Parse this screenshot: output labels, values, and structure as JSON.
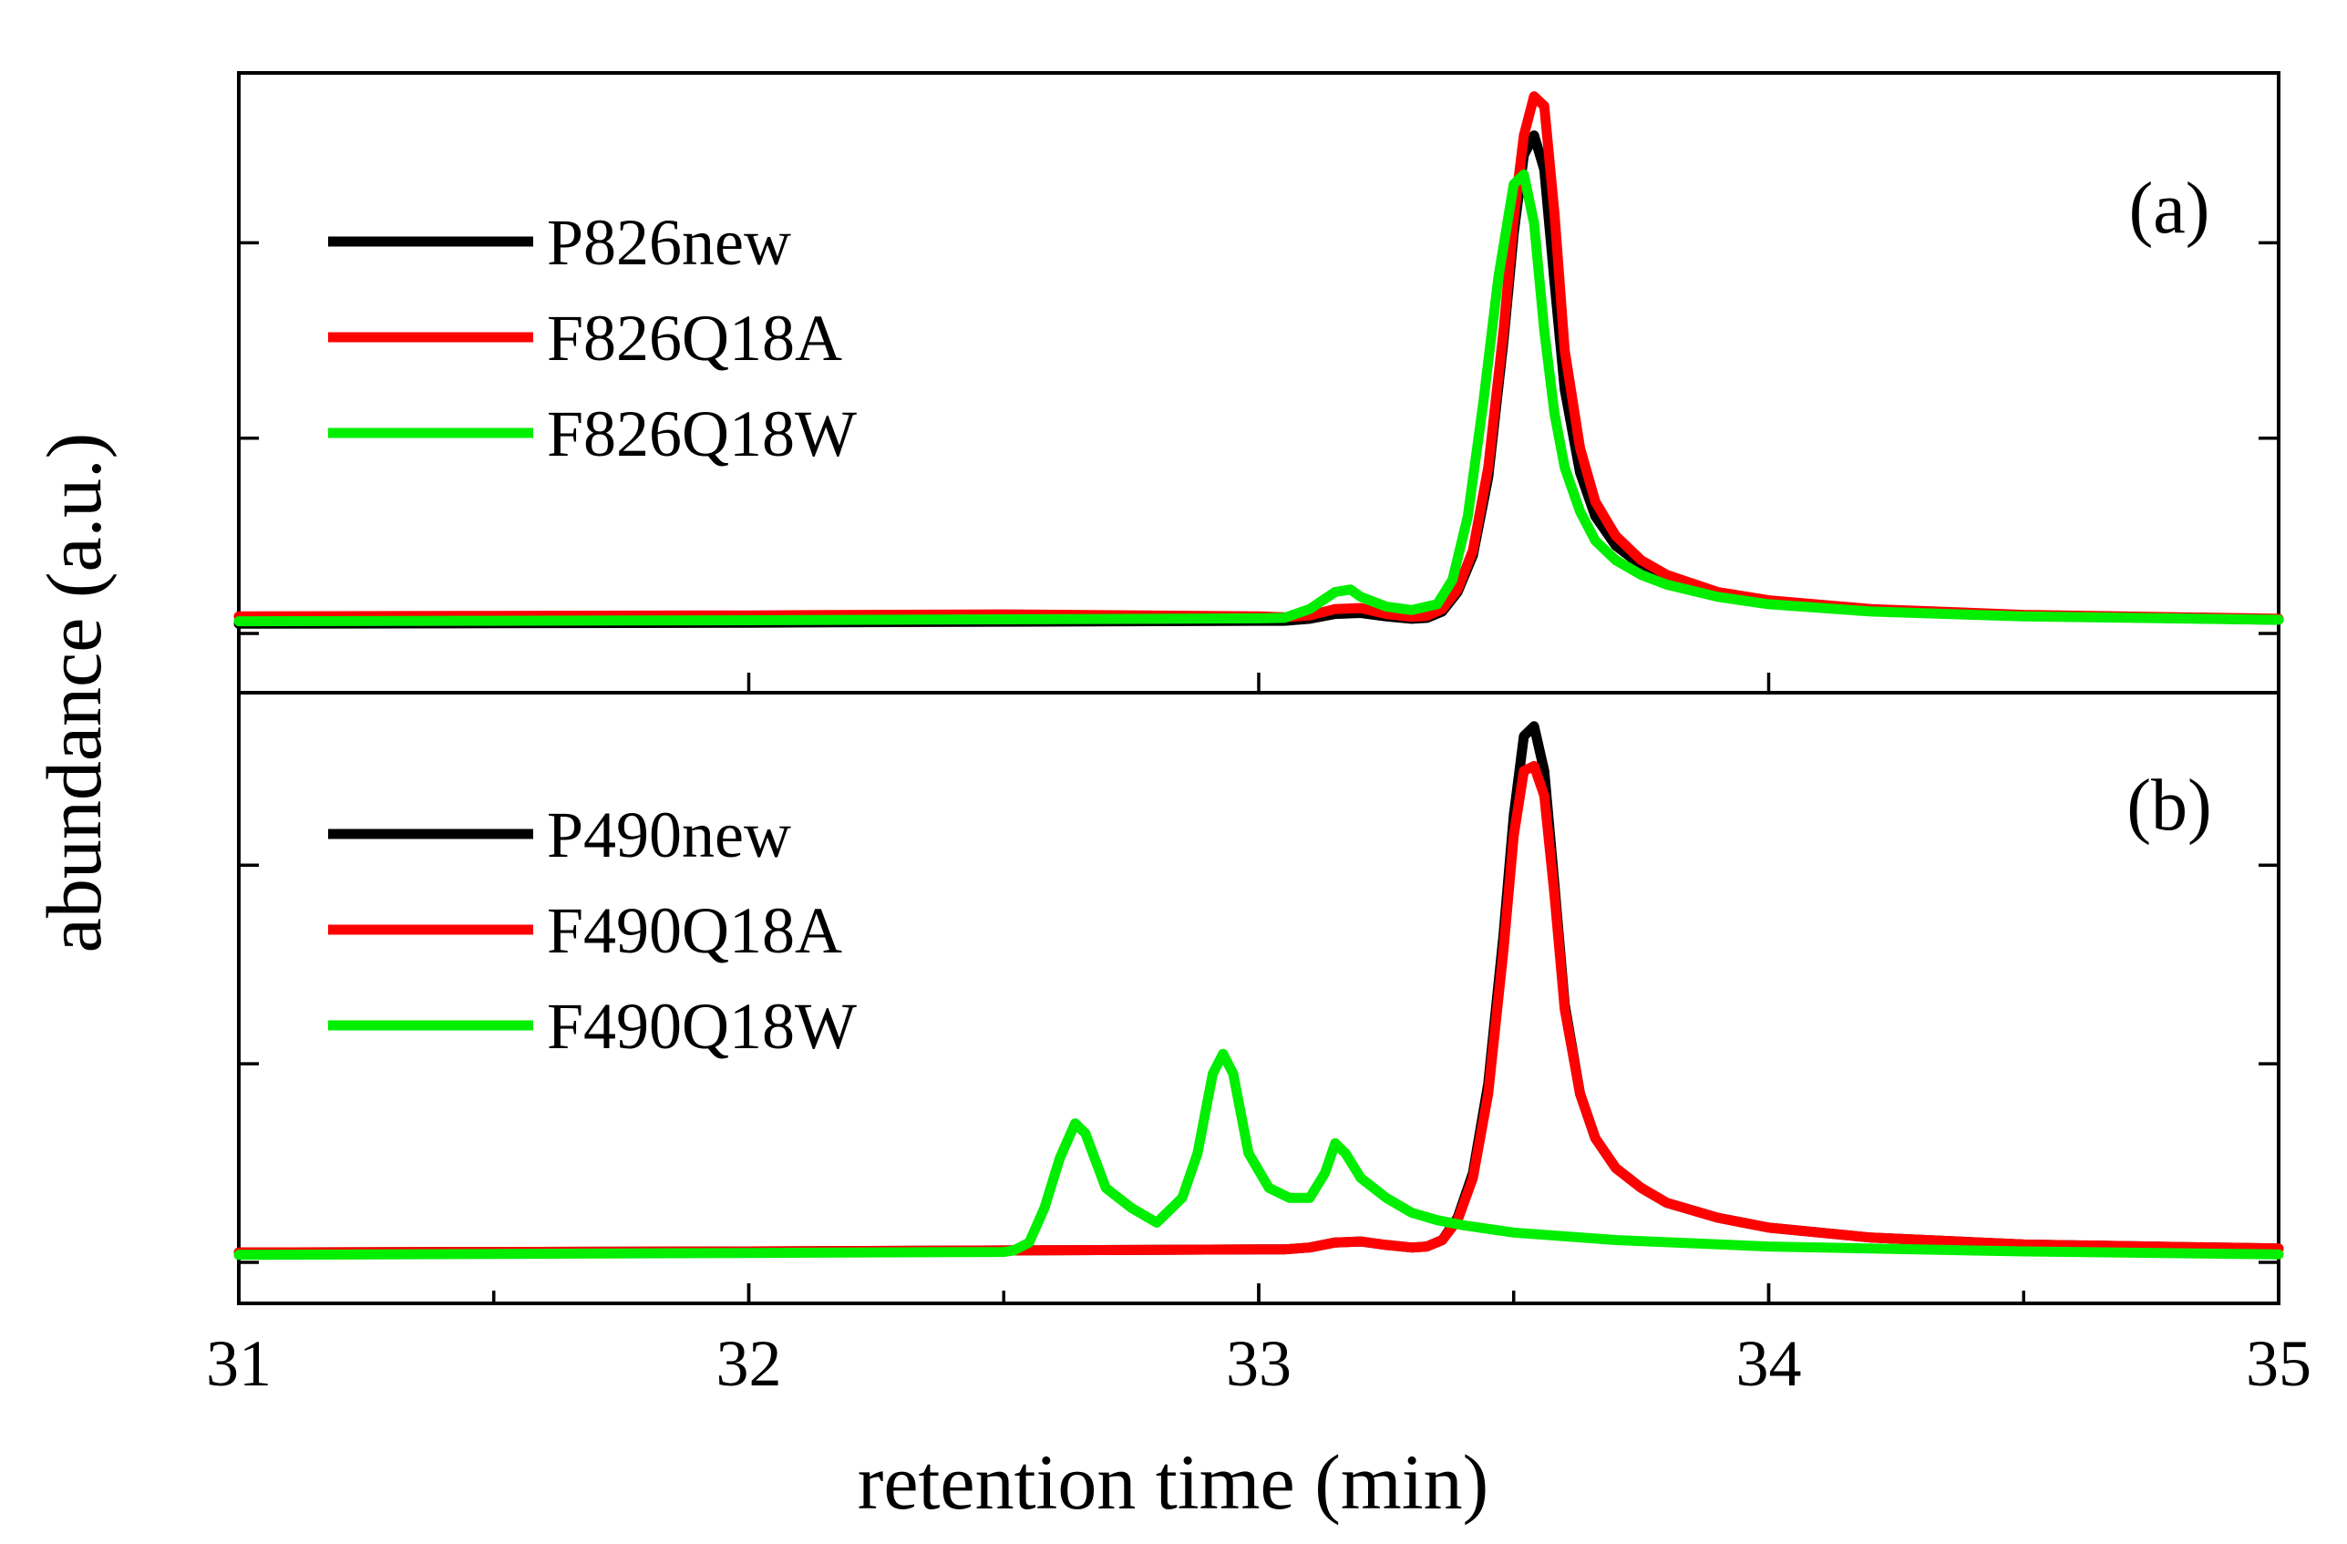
{
  "chart_data": {
    "type": "line",
    "xlabel": "retention time (min)",
    "ylabel": "abundance (a.u.)",
    "xlim": [
      31,
      35
    ],
    "x_ticks": [
      31,
      32,
      33,
      34,
      35
    ],
    "x_tick_labels": [
      "31",
      "32",
      "33",
      "34",
      "35"
    ],
    "x_minor_ticks": [
      31.5,
      32.5,
      33.5,
      34.5
    ],
    "grid": false,
    "panels": [
      {
        "label": "(a)",
        "ylim": [
          0,
          1.12
        ],
        "y_ticks": [
          0,
          0.4,
          0.8
        ],
        "legend_position": "top-left",
        "series": [
          {
            "name": "P826new",
            "color": "#000000",
            "x": [
              31.0,
              31.5,
              32.0,
              32.5,
              33.0,
              33.05,
              33.1,
              33.15,
              33.2,
              33.25,
              33.3,
              33.33,
              33.36,
              33.39,
              33.42,
              33.45,
              33.48,
              33.5,
              33.52,
              33.54,
              33.56,
              33.58,
              33.6,
              33.63,
              33.66,
              33.7,
              33.75,
              33.8,
              33.9,
              34.0,
              34.2,
              34.5,
              35.0
            ],
            "y": [
              0.02,
              0.021,
              0.022,
              0.024,
              0.026,
              0.026,
              0.03,
              0.04,
              0.042,
              0.035,
              0.03,
              0.032,
              0.045,
              0.085,
              0.16,
              0.32,
              0.6,
              0.82,
              0.98,
              1.02,
              0.95,
              0.72,
              0.5,
              0.33,
              0.24,
              0.18,
              0.14,
              0.11,
              0.08,
              0.064,
              0.048,
              0.036,
              0.028
            ]
          },
          {
            "name": "F826Q18A",
            "color": "#ff0000",
            "x": [
              31.0,
              31.5,
              32.0,
              32.5,
              33.0,
              33.05,
              33.1,
              33.15,
              33.2,
              33.25,
              33.3,
              33.33,
              33.36,
              33.39,
              33.42,
              33.45,
              33.48,
              33.5,
              33.52,
              33.54,
              33.56,
              33.58,
              33.6,
              33.63,
              33.66,
              33.7,
              33.75,
              33.8,
              33.9,
              34.0,
              34.2,
              34.5,
              35.0
            ],
            "y": [
              0.035,
              0.036,
              0.037,
              0.039,
              0.035,
              0.033,
              0.037,
              0.05,
              0.052,
              0.04,
              0.034,
              0.036,
              0.05,
              0.09,
              0.17,
              0.34,
              0.62,
              0.85,
              1.02,
              1.1,
              1.08,
              0.86,
              0.58,
              0.38,
              0.27,
              0.2,
              0.15,
              0.12,
              0.085,
              0.068,
              0.05,
              0.038,
              0.03
            ]
          },
          {
            "name": "F826Q18W",
            "color": "#00ee00",
            "x": [
              31.0,
              31.5,
              32.0,
              32.5,
              33.0,
              33.05,
              33.1,
              33.15,
              33.18,
              33.2,
              33.25,
              33.3,
              33.35,
              33.38,
              33.41,
              33.44,
              33.47,
              33.5,
              33.52,
              33.54,
              33.56,
              33.58,
              33.6,
              33.63,
              33.66,
              33.7,
              33.75,
              33.8,
              33.9,
              34.0,
              34.2,
              34.5,
              35.0
            ],
            "y": [
              0.025,
              0.026,
              0.027,
              0.029,
              0.031,
              0.032,
              0.05,
              0.085,
              0.09,
              0.075,
              0.055,
              0.048,
              0.06,
              0.11,
              0.24,
              0.47,
              0.73,
              0.92,
              0.94,
              0.84,
              0.62,
              0.45,
              0.34,
              0.25,
              0.19,
              0.15,
              0.12,
              0.1,
              0.075,
              0.06,
              0.045,
              0.035,
              0.028
            ]
          }
        ]
      },
      {
        "label": "(b)",
        "ylim": [
          0,
          1.12
        ],
        "y_ticks": [
          0,
          0.4,
          0.8
        ],
        "legend_position": "top-left",
        "series": [
          {
            "name": "P490new",
            "color": "#000000",
            "x": [
              31.0,
              31.5,
              32.0,
              32.5,
              33.0,
              33.05,
              33.1,
              33.15,
              33.2,
              33.25,
              33.3,
              33.33,
              33.36,
              33.39,
              33.42,
              33.45,
              33.48,
              33.5,
              33.52,
              33.54,
              33.56,
              33.58,
              33.6,
              33.63,
              33.66,
              33.7,
              33.75,
              33.8,
              33.9,
              34.0,
              34.2,
              34.5,
              35.0
            ],
            "y": [
              0.02,
              0.021,
              0.022,
              0.024,
              0.026,
              0.026,
              0.03,
              0.04,
              0.042,
              0.035,
              0.03,
              0.032,
              0.045,
              0.09,
              0.18,
              0.36,
              0.66,
              0.9,
              1.06,
              1.08,
              0.99,
              0.76,
              0.52,
              0.34,
              0.25,
              0.19,
              0.15,
              0.12,
              0.09,
              0.07,
              0.05,
              0.036,
              0.028
            ]
          },
          {
            "name": "F490Q18A",
            "color": "#ff0000",
            "x": [
              31.0,
              31.5,
              32.0,
              32.5,
              33.0,
              33.05,
              33.1,
              33.15,
              33.2,
              33.25,
              33.3,
              33.33,
              33.36,
              33.39,
              33.42,
              33.45,
              33.48,
              33.5,
              33.52,
              33.54,
              33.56,
              33.58,
              33.6,
              33.63,
              33.66,
              33.7,
              33.75,
              33.8,
              33.9,
              34.0,
              34.2,
              34.5,
              35.0
            ],
            "y": [
              0.02,
              0.021,
              0.022,
              0.024,
              0.026,
              0.026,
              0.03,
              0.04,
              0.042,
              0.035,
              0.03,
              0.032,
              0.045,
              0.085,
              0.17,
              0.34,
              0.63,
              0.86,
              0.99,
              1.0,
              0.94,
              0.74,
              0.51,
              0.34,
              0.25,
              0.19,
              0.15,
              0.12,
              0.09,
              0.07,
              0.05,
              0.036,
              0.028
            ]
          },
          {
            "name": "F490Q18W",
            "color": "#00ee00",
            "x": [
              31.0,
              31.5,
              32.0,
              32.5,
              32.52,
              32.55,
              32.58,
              32.61,
              32.64,
              32.66,
              32.7,
              32.75,
              32.8,
              32.85,
              32.88,
              32.91,
              32.93,
              32.95,
              32.98,
              33.02,
              33.06,
              33.1,
              33.13,
              33.15,
              33.17,
              33.2,
              33.25,
              33.3,
              33.35,
              33.4,
              33.5,
              33.7,
              34.0,
              34.5,
              35.0
            ],
            "y": [
              0.015,
              0.017,
              0.019,
              0.021,
              0.024,
              0.04,
              0.11,
              0.21,
              0.28,
              0.26,
              0.15,
              0.11,
              0.08,
              0.13,
              0.22,
              0.38,
              0.42,
              0.38,
              0.22,
              0.15,
              0.13,
              0.13,
              0.18,
              0.24,
              0.22,
              0.17,
              0.13,
              0.1,
              0.085,
              0.075,
              0.06,
              0.045,
              0.032,
              0.022,
              0.016
            ]
          }
        ]
      }
    ]
  }
}
